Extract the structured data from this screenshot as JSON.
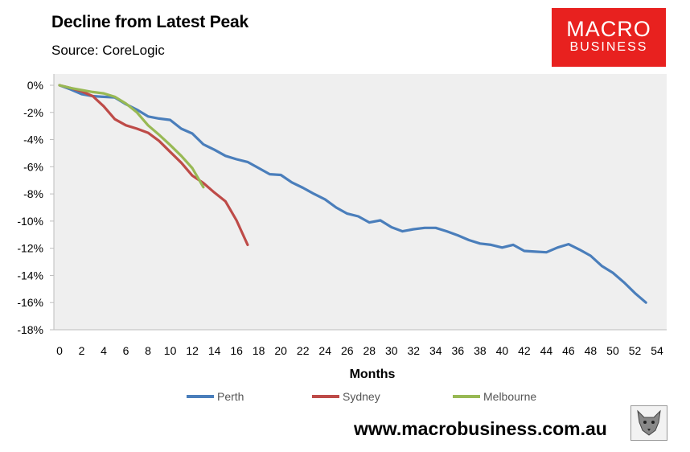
{
  "header": {
    "title": "Decline from Latest Peak",
    "source": "Source: CoreLogic"
  },
  "logo": {
    "line1": "MACRO",
    "line2": "BUSINESS",
    "color": "#e8211f"
  },
  "footer": {
    "url": "www.macrobusiness.com.au"
  },
  "chart_data": {
    "type": "line",
    "title": "Decline from Latest Peak",
    "subtitle": "Source: CoreLogic",
    "xlabel": "Months",
    "ylabel": "",
    "xlim": [
      0,
      54
    ],
    "ylim": [
      -18,
      0
    ],
    "x_ticks": [
      0,
      2,
      4,
      6,
      8,
      10,
      12,
      14,
      16,
      18,
      20,
      22,
      24,
      26,
      28,
      30,
      32,
      34,
      36,
      38,
      40,
      42,
      44,
      46,
      48,
      50,
      52,
      54
    ],
    "y_ticks": [
      0,
      -2,
      -4,
      -6,
      -8,
      -10,
      -12,
      -14,
      -16,
      -18
    ],
    "y_tick_labels": [
      "0%",
      "-2%",
      "-4%",
      "-6%",
      "-8%",
      "-10%",
      "-12%",
      "-14%",
      "-16%",
      "-18%"
    ],
    "legend_position": "bottom",
    "grid": false,
    "plot_background": "#efefef",
    "series": [
      {
        "name": "Perth",
        "color": "#4a7ebb",
        "x": [
          0,
          1,
          2,
          3,
          4,
          5,
          6,
          7,
          8,
          9,
          10,
          11,
          12,
          13,
          14,
          15,
          16,
          17,
          18,
          19,
          20,
          21,
          22,
          23,
          24,
          25,
          26,
          27,
          28,
          29,
          30,
          31,
          32,
          33,
          34,
          35,
          36,
          37,
          38,
          39,
          40,
          41,
          42,
          43,
          44,
          45,
          46,
          47,
          48,
          49,
          50,
          51,
          52,
          53
        ],
        "y": [
          0,
          -0.3,
          -0.65,
          -0.8,
          -0.85,
          -0.9,
          -1.4,
          -1.8,
          -2.3,
          -2.45,
          -2.55,
          -3.2,
          -3.55,
          -4.35,
          -4.75,
          -5.2,
          -5.45,
          -5.65,
          -6.1,
          -6.55,
          -6.6,
          -7.15,
          -7.55,
          -8.0,
          -8.4,
          -9.0,
          -9.45,
          -9.65,
          -10.1,
          -9.95,
          -10.45,
          -10.75,
          -10.6,
          -10.5,
          -10.5,
          -10.75,
          -11.05,
          -11.4,
          -11.65,
          -11.75,
          -11.95,
          -11.75,
          -12.2,
          -12.25,
          -12.3,
          -11.95,
          -11.7,
          -12.1,
          -12.55,
          -13.3,
          -13.8,
          -14.5,
          -15.3,
          -16.0
        ]
      },
      {
        "name": "Sydney",
        "color": "#be4b48",
        "x": [
          0,
          1,
          2,
          3,
          4,
          5,
          6,
          7,
          8,
          9,
          10,
          11,
          12,
          13,
          14,
          15,
          16,
          17
        ],
        "y": [
          0,
          -0.2,
          -0.45,
          -0.8,
          -1.55,
          -2.5,
          -2.95,
          -3.2,
          -3.5,
          -4.1,
          -4.9,
          -5.7,
          -6.65,
          -7.2,
          -7.9,
          -8.55,
          -9.95,
          -11.75
        ]
      },
      {
        "name": "Melbourne",
        "color": "#98b954",
        "x": [
          0,
          1,
          2,
          3,
          4,
          5,
          6,
          7,
          8,
          9,
          10,
          11,
          12,
          13
        ],
        "y": [
          0,
          -0.2,
          -0.35,
          -0.5,
          -0.6,
          -0.85,
          -1.35,
          -2.0,
          -2.95,
          -3.65,
          -4.4,
          -5.2,
          -6.1,
          -7.5
        ]
      }
    ]
  }
}
